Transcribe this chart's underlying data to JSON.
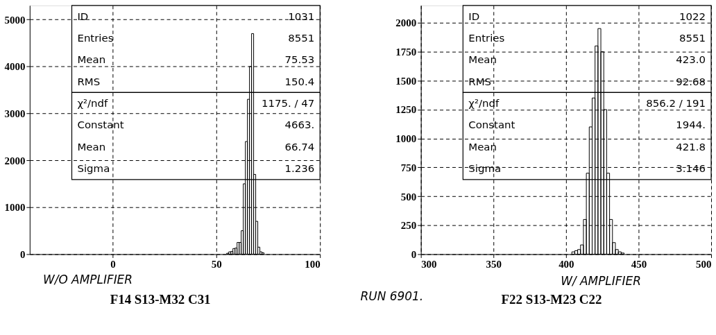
{
  "chart_data": [
    {
      "type": "histogram",
      "color": "#000000",
      "bins": [
        55,
        56,
        57,
        58,
        59,
        60,
        61,
        62,
        63,
        64,
        65,
        66,
        67,
        68,
        69,
        70,
        71,
        72,
        73
      ],
      "values": [
        20,
        50,
        60,
        120,
        130,
        250,
        250,
        500,
        1500,
        2400,
        3300,
        4000,
        4700,
        1700,
        700,
        150,
        50,
        30
      ],
      "xlim": [
        -40,
        100
      ],
      "xticks": [
        0,
        50,
        100
      ],
      "ylim": [
        0,
        5300
      ],
      "yticks": [
        0,
        1000,
        2000,
        3000,
        4000,
        5000
      ],
      "grid": true,
      "annotations": [
        "ID",
        "1031",
        "Entries",
        "8551",
        "Mean",
        "75.53",
        "RMS",
        "150.4",
        "χ²/ndf",
        "1175.   /   47",
        "Constant",
        "4663.",
        "Mean",
        "66.74",
        "Sigma",
        "1.236",
        "W/O AMPLIFIER",
        "F14 S13-M32 C31"
      ]
    },
    {
      "type": "histogram",
      "color": "#000000",
      "bins": [
        404,
        406,
        408,
        410,
        412,
        414,
        416,
        418,
        420,
        422,
        424,
        426,
        428,
        430,
        432,
        434,
        436,
        438,
        440
      ],
      "values": [
        20,
        30,
        40,
        80,
        300,
        700,
        1100,
        1350,
        1800,
        1950,
        1750,
        1250,
        700,
        300,
        100,
        40,
        20,
        10
      ],
      "xlim": [
        300,
        500
      ],
      "xticks": [
        300,
        350,
        400,
        450,
        500
      ],
      "ylim": [
        0,
        2150
      ],
      "yticks": [
        0,
        250,
        500,
        750,
        1000,
        1250,
        1500,
        1750,
        2000
      ],
      "grid": true,
      "annotations": [
        "ID",
        "1022",
        "Entries",
        "8551",
        "Mean",
        "423.0",
        "RMS",
        "92.68",
        "χ²/ndf",
        "856.2   /   191",
        "Constant",
        "1944.",
        "Mean",
        "421.8",
        "Sigma",
        "3.146",
        "W/ AMPLIFIER",
        "RUN 6901.",
        "F22 S13-M23 C22"
      ]
    }
  ]
}
